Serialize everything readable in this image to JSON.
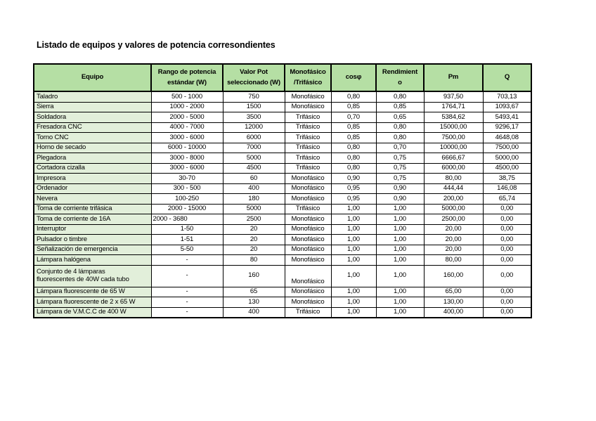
{
  "page": {
    "title": "Listado de equipos y valores de potencia corresondientes"
  },
  "colors": {
    "header_bg": "#b5dfa4",
    "equipo_col_bg": "#e2efda",
    "border": "#000000",
    "page_bg": "#ffffff"
  },
  "table": {
    "headers": [
      "Equipo",
      "Rango de potencia\nestándar (W)",
      "Valor Pot\nseleccionado (W)",
      "Monofásico\n/Trifásico",
      "cosφ",
      "Rendimient\no",
      "Pm",
      "Q"
    ],
    "columns": [
      {
        "key": "equipo",
        "name": "cell-equipment-name",
        "class": "col-equipo"
      },
      {
        "key": "rango",
        "name": "cell-power-range",
        "class": "col-rango"
      },
      {
        "key": "valor",
        "name": "cell-selected-power",
        "class": "col-valor"
      },
      {
        "key": "fase",
        "name": "cell-phase-type",
        "class": "col-fase"
      },
      {
        "key": "cos",
        "name": "cell-cos-phi",
        "class": "col-cos"
      },
      {
        "key": "rend",
        "name": "cell-efficiency",
        "class": "col-rend"
      },
      {
        "key": "pm",
        "name": "cell-pm",
        "class": "col-pm"
      },
      {
        "key": "q",
        "name": "cell-q",
        "class": "col-q"
      }
    ],
    "rows": [
      {
        "equipo": "Taladro",
        "rango": "500 - 1000",
        "valor": "750",
        "fase": "Monofásico",
        "cos": "0,80",
        "rend": "0,80",
        "pm": "937,50",
        "q": "703,13"
      },
      {
        "equipo": "Sierra",
        "rango": "1000 - 2000",
        "valor": "1500",
        "fase": "Monofásico",
        "cos": "0,85",
        "rend": "0,85",
        "pm": "1764,71",
        "q": "1093,67"
      },
      {
        "equipo": "Soldadora",
        "rango": "2000 - 5000",
        "valor": "3500",
        "fase": "Trifásico",
        "cos": "0,70",
        "rend": "0,65",
        "pm": "5384,62",
        "q": "5493,41"
      },
      {
        "equipo": "Fresadora CNC",
        "rango": "4000 - 7000",
        "valor": "12000",
        "fase": "Trifásico",
        "cos": "0,85",
        "rend": "0,80",
        "pm": "15000,00",
        "q": "9296,17"
      },
      {
        "equipo": "Torno CNC",
        "rango": "3000 - 6000",
        "valor": "6000",
        "fase": "Trifásico",
        "cos": "0,85",
        "rend": "0,80",
        "pm": "7500,00",
        "q": "4648,08"
      },
      {
        "equipo": "Horno de secado",
        "rango": "6000 - 10000",
        "valor": "7000",
        "fase": "Trifásico",
        "cos": "0,80",
        "rend": "0,70",
        "pm": "10000,00",
        "q": "7500,00"
      },
      {
        "equipo": "Plegadora",
        "rango": "3000 - 8000",
        "valor": "5000",
        "fase": "Trifásico",
        "cos": "0,80",
        "rend": "0,75",
        "pm": "6666,67",
        "q": "5000,00"
      },
      {
        "equipo": "Cortadora cizalla",
        "rango": "3000 - 6000",
        "valor": "4500",
        "fase": "Trifásico",
        "cos": "0,80",
        "rend": "0,75",
        "pm": "6000,00",
        "q": "4500,00"
      },
      {
        "equipo": "Impresora",
        "rango": "30-70",
        "valor": "60",
        "fase": "Monofásico",
        "cos": "0,90",
        "rend": "0,75",
        "pm": "80,00",
        "q": "38,75"
      },
      {
        "equipo": "Ordenador",
        "rango": "300 - 500",
        "valor": "400",
        "fase": "Monofásico",
        "cos": "0,95",
        "rend": "0,90",
        "pm": "444,44",
        "q": "146,08"
      },
      {
        "equipo": "Nevera",
        "rango": "100-250",
        "valor": "180",
        "fase": "Monofásico",
        "cos": "0,95",
        "rend": "0,90",
        "pm": "200,00",
        "q": "65,74"
      },
      {
        "equipo": "Toma de corriente trifásica",
        "rango": "2000 - 15000",
        "valor": "5000",
        "fase": "Trifásico",
        "cos": "1,00",
        "rend": "1,00",
        "pm": "5000,00",
        "q": "0,00"
      },
      {
        "equipo": "Toma de corriente de 16A",
        "rango": "2000 - 3680",
        "valor": "2500",
        "fase": "Monofásico",
        "cos": "1,00",
        "rend": "1,00",
        "pm": "2500,00",
        "q": "0,00",
        "rango_align": "left"
      },
      {
        "equipo": "Interruptor",
        "rango": "1-50",
        "valor": "20",
        "fase": "Monofásico",
        "cos": "1,00",
        "rend": "1,00",
        "pm": "20,00",
        "q": "0,00"
      },
      {
        "equipo": "Pulsador o timbre",
        "rango": "1-51",
        "valor": "20",
        "fase": "Monofásico",
        "cos": "1,00",
        "rend": "1,00",
        "pm": "20,00",
        "q": "0,00"
      },
      {
        "equipo": "Señalización de emergencia",
        "rango": "5-50",
        "valor": "20",
        "fase": "Monofásico",
        "cos": "1,00",
        "rend": "1,00",
        "pm": "20,00",
        "q": "0,00"
      },
      {
        "equipo": "Lámpara halógena",
        "rango": "-",
        "valor": "80",
        "fase": "Monofásico",
        "cos": "1,00",
        "rend": "1,00",
        "pm": "80,00",
        "q": "0,00"
      },
      {
        "equipo": "Conjunto de 4 lámparas\nfluorescentes de 40W cada tubo",
        "rango": "-",
        "valor": "160",
        "fase": "Monofásico",
        "cos": "1,00",
        "rend": "1,00",
        "pm": "160,00",
        "q": "0,00",
        "tall": true,
        "fase_valign": "bottom"
      },
      {
        "equipo": "Lámpara fluorescente de 65 W",
        "rango": "-",
        "valor": "65",
        "fase": "Monofásico",
        "cos": "1,00",
        "rend": "1,00",
        "pm": "65,00",
        "q": "0,00"
      },
      {
        "equipo": "Lámpara fluorescente de 2 x 65 W",
        "rango": "-",
        "valor": "130",
        "fase": "Monofásico",
        "cos": "1,00",
        "rend": "1,00",
        "pm": "130,00",
        "q": "0,00"
      },
      {
        "equipo": "Lámpara de V.M.C.C de 400 W",
        "rango": "-",
        "valor": "400",
        "fase": "Trifásico",
        "cos": "1,00",
        "rend": "1,00",
        "pm": "400,00",
        "q": "0,00"
      }
    ]
  }
}
